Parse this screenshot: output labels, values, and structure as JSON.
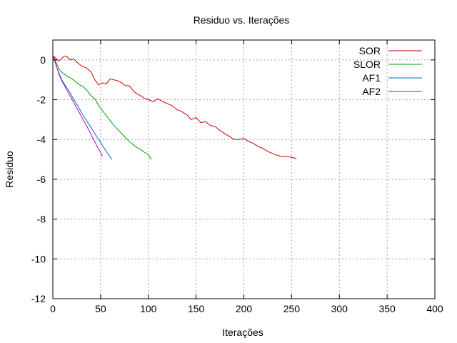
{
  "chart_data": {
    "type": "line",
    "title": "Residuo vs. Iterações",
    "xlabel": "Iterações",
    "ylabel": "Residuo",
    "xlim": [
      0,
      400
    ],
    "ylim": [
      -12,
      1
    ],
    "grid": true,
    "legend_position": "top-right",
    "x_ticks": [
      0,
      50,
      100,
      150,
      200,
      250,
      300,
      350,
      400
    ],
    "y_ticks": [
      0,
      -2,
      -4,
      -6,
      -8,
      -10,
      -12
    ],
    "x_tick_labels": [
      "0",
      "50",
      "100",
      "150",
      "200",
      "250",
      "300",
      "350",
      "400"
    ],
    "y_tick_labels": [
      "0",
      "-2",
      "-4",
      "-6",
      "-8",
      "-10",
      "-12"
    ],
    "series": [
      {
        "name": "SOR",
        "color": "#cc0000",
        "x": [
          0,
          3,
          6,
          9,
          12,
          15,
          18,
          22,
          26,
          30,
          35,
          40,
          44,
          48,
          52,
          56,
          60,
          64,
          68,
          72,
          76,
          80,
          85,
          90,
          95,
          100,
          105,
          110,
          115,
          120,
          125,
          130,
          135,
          140,
          145,
          150,
          155,
          160,
          165,
          170,
          175,
          180,
          185,
          190,
          195,
          200,
          205,
          210,
          215,
          220,
          225,
          230,
          235,
          240,
          245,
          250,
          255
        ],
        "y": [
          0.2,
          0.1,
          -0.05,
          0.05,
          0.2,
          0.15,
          0.0,
          0.05,
          -0.15,
          -0.3,
          -0.4,
          -0.6,
          -1.0,
          -1.25,
          -1.15,
          -1.2,
          -0.95,
          -1.0,
          -1.05,
          -1.15,
          -1.3,
          -1.3,
          -1.6,
          -1.75,
          -1.9,
          -2.0,
          -2.1,
          -1.95,
          -2.1,
          -2.2,
          -2.3,
          -2.5,
          -2.6,
          -2.75,
          -3.0,
          -2.9,
          -3.15,
          -3.1,
          -3.3,
          -3.35,
          -3.55,
          -3.7,
          -3.85,
          -4.0,
          -4.0,
          -3.95,
          -4.1,
          -4.2,
          -4.35,
          -4.45,
          -4.6,
          -4.7,
          -4.8,
          -4.85,
          -4.85,
          -4.9,
          -4.95
        ]
      },
      {
        "name": "SLOR",
        "color": "#00a000",
        "x": [
          0,
          2,
          4,
          6,
          8,
          10,
          13,
          16,
          20,
          24,
          28,
          32,
          36,
          40,
          44,
          48,
          52,
          56,
          60,
          64,
          68,
          72,
          76,
          80,
          84,
          88,
          92,
          96,
          100,
          103
        ],
        "y": [
          0.2,
          0.05,
          -0.2,
          -0.4,
          -0.55,
          -0.65,
          -0.75,
          -0.85,
          -0.95,
          -1.1,
          -1.25,
          -1.35,
          -1.55,
          -1.8,
          -1.95,
          -2.3,
          -2.55,
          -2.8,
          -3.05,
          -3.3,
          -3.5,
          -3.7,
          -3.9,
          -4.1,
          -4.25,
          -4.4,
          -4.5,
          -4.65,
          -4.75,
          -5.0
        ]
      },
      {
        "name": "AF1",
        "color": "#0070c0",
        "x": [
          0,
          2,
          4,
          6,
          8,
          10,
          14,
          18,
          22,
          26,
          30,
          34,
          38,
          42,
          46,
          50,
          54,
          58,
          62
        ],
        "y": [
          0.2,
          -0.05,
          -0.35,
          -0.6,
          -0.85,
          -1.05,
          -1.35,
          -1.65,
          -2.0,
          -2.3,
          -2.65,
          -2.95,
          -3.25,
          -3.55,
          -3.85,
          -4.15,
          -4.45,
          -4.75,
          -5.0
        ]
      },
      {
        "name": "AF2",
        "color": "#c000c0",
        "x": [
          0,
          2,
          4,
          6,
          8,
          10,
          14,
          18,
          22,
          26,
          30,
          34,
          38,
          42,
          46,
          50,
          52
        ],
        "y": [
          0.2,
          -0.05,
          -0.35,
          -0.65,
          -0.9,
          -1.1,
          -1.45,
          -1.8,
          -2.15,
          -2.5,
          -2.85,
          -3.2,
          -3.55,
          -3.95,
          -4.3,
          -4.65,
          -4.85
        ]
      }
    ]
  }
}
